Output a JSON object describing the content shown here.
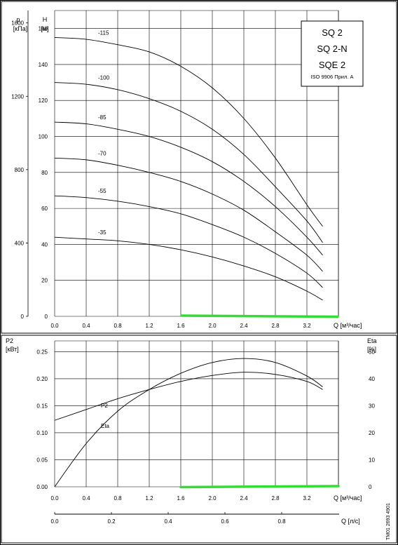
{
  "pump_chart": {
    "frame_color": "#000000",
    "grid_color": "#000000",
    "highlight_color": "#33dd33",
    "title_lines": [
      "SQ 2",
      "SQ 2-N",
      "SQE 2"
    ],
    "standard": "ISO 9906 Прил. A",
    "doc_number": "TM01 2693 4901",
    "top": {
      "left_axis_label": [
        "p",
        "[кПа]"
      ],
      "right_axis_label": [
        "H",
        "[м]"
      ],
      "p_ticks": [
        "1600",
        "1200",
        "800",
        "400",
        "0"
      ],
      "h_ticks": [
        "160",
        "140",
        "120",
        "100",
        "80",
        "60",
        "40",
        "20",
        "0"
      ],
      "q_ticks": [
        "0.0",
        "0.4",
        "0.8",
        "1.2",
        "1.6",
        "2.0",
        "2.4",
        "2.8",
        "3.2"
      ],
      "q_label": "Q [м³/час]"
    },
    "bottom": {
      "left_axis_label": [
        "P2",
        "[кВт]"
      ],
      "right_axis_label": [
        "Eta",
        "[%]"
      ],
      "p2_ticks": [
        "0.25",
        "0.20",
        "0.15",
        "0.10",
        "0.05",
        "0.00"
      ],
      "eta_ticks": [
        "50",
        "40",
        "30",
        "20",
        "10",
        "0"
      ],
      "q_ticks": [
        "0.0",
        "0.4",
        "0.8",
        "1.2",
        "1.6",
        "2.0",
        "2.4",
        "2.8",
        "3.2"
      ],
      "q_label": "Q [м³/час]",
      "ls_ticks": [
        "0.0",
        "0.2",
        "0.4",
        "0.6",
        "0.8"
      ],
      "ls_label": "Q [л/с]",
      "p2_curve_label": "P2",
      "eta_curve_label": "Eta"
    }
  },
  "chart_data": [
    {
      "type": "line",
      "xlabel": "Q [м³/час]",
      "ylabel": "H [м]",
      "xlim": [
        0,
        3.6
      ],
      "ylim": [
        0,
        170
      ],
      "grid": true,
      "series": [
        {
          "name": "-115",
          "x": [
            0,
            0.4,
            0.8,
            1.2,
            1.6,
            2.0,
            2.4,
            2.8,
            3.2,
            3.4
          ],
          "values": [
            155,
            154,
            151,
            147,
            139,
            127,
            110,
            88,
            62,
            50
          ]
        },
        {
          "name": "-100",
          "x": [
            0,
            0.4,
            0.8,
            1.2,
            1.6,
            2.0,
            2.4,
            2.8,
            3.2,
            3.4
          ],
          "values": [
            130,
            129,
            126,
            121,
            114,
            104,
            90,
            72,
            53,
            41
          ]
        },
        {
          "name": "-85",
          "x": [
            0,
            0.4,
            0.8,
            1.2,
            1.6,
            2.0,
            2.4,
            2.8,
            3.2,
            3.4
          ],
          "values": [
            108,
            107,
            104,
            100,
            94,
            86,
            75,
            61,
            44,
            34
          ]
        },
        {
          "name": "-70",
          "x": [
            0,
            0.4,
            0.8,
            1.2,
            1.6,
            2.0,
            2.4,
            2.8,
            3.2,
            3.4
          ],
          "values": [
            88,
            87,
            84,
            80,
            75,
            68,
            59,
            47,
            34,
            25
          ]
        },
        {
          "name": "-55",
          "x": [
            0,
            0.4,
            0.8,
            1.2,
            1.6,
            2.0,
            2.4,
            2.8,
            3.2,
            3.4
          ],
          "values": [
            67,
            66,
            64,
            61,
            57,
            51,
            44,
            35,
            24,
            16
          ]
        },
        {
          "name": "-35",
          "x": [
            0,
            0.4,
            0.8,
            1.2,
            1.6,
            2.0,
            2.4,
            2.8,
            3.2,
            3.4
          ],
          "values": [
            44,
            43,
            42,
            40,
            37,
            33,
            28,
            22,
            14,
            9
          ]
        }
      ]
    },
    {
      "type": "line",
      "xlabel": "Q [м³/час]",
      "ylabel": "P2 [кВт]",
      "xlim": [
        0,
        3.6
      ],
      "ylim": [
        0,
        0.27
      ],
      "y2label": "Eta [%]",
      "y2lim": [
        0,
        54
      ],
      "grid": true,
      "series": [
        {
          "name": "P2",
          "axis": "left",
          "x": [
            0,
            0.4,
            0.8,
            1.2,
            1.6,
            2.0,
            2.4,
            2.8,
            3.2,
            3.4
          ],
          "values": [
            0.123,
            0.143,
            0.163,
            0.18,
            0.195,
            0.206,
            0.212,
            0.208,
            0.195,
            0.18
          ]
        },
        {
          "name": "Eta",
          "axis": "right",
          "x": [
            0,
            0.4,
            0.8,
            1.2,
            1.6,
            2.0,
            2.4,
            2.8,
            3.2,
            3.4
          ],
          "values": [
            0,
            16,
            28,
            36,
            42,
            46,
            47.5,
            46,
            41,
            37
          ]
        }
      ]
    }
  ]
}
